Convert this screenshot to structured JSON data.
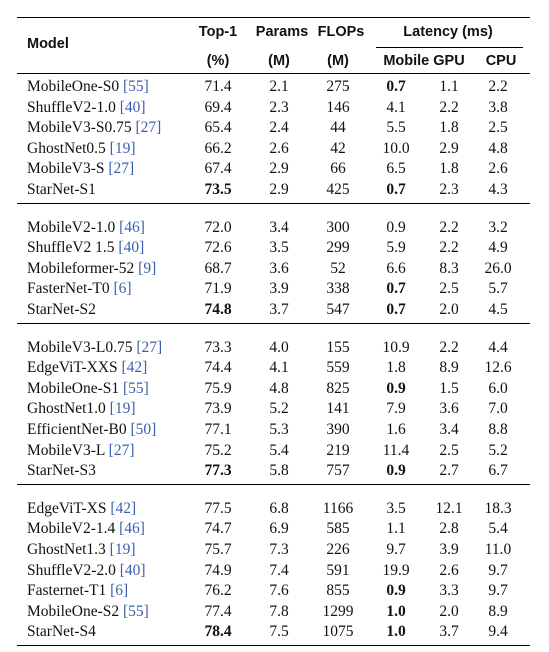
{
  "table": {
    "header": {
      "model": "Model",
      "top1": "Top-1",
      "top1_unit": "(%)",
      "params": "Params",
      "params_unit": "(M)",
      "flops": "FLOPs",
      "flops_unit": "(M)",
      "latency": "Latency (ms)",
      "mobile_gpu": "Mobile GPU",
      "cpu": "CPU"
    },
    "groups": [
      {
        "rows": [
          {
            "model": "MobileOne-S0",
            "ref": "[55]",
            "top1": "71.4",
            "params": "2.1",
            "flops": "275",
            "mobile": "0.7",
            "gpu": "1.1",
            "cpu": "2.2",
            "bold": [
              "mobile"
            ]
          },
          {
            "model": "ShuffleV2-1.0",
            "ref": "[40]",
            "top1": "69.4",
            "params": "2.3",
            "flops": "146",
            "mobile": "4.1",
            "gpu": "2.2",
            "cpu": "3.8"
          },
          {
            "model": "MobileV3-S0.75",
            "ref": "[27]",
            "top1": "65.4",
            "params": "2.4",
            "flops": "44",
            "mobile": "5.5",
            "gpu": "1.8",
            "cpu": "2.5"
          },
          {
            "model": "GhostNet0.5",
            "ref": "[19]",
            "top1": "66.2",
            "params": "2.6",
            "flops": "42",
            "mobile": "10.0",
            "gpu": "2.9",
            "cpu": "4.8"
          },
          {
            "model": "MobileV3-S",
            "ref": "[27]",
            "top1": "67.4",
            "params": "2.9",
            "flops": "66",
            "mobile": "6.5",
            "gpu": "1.8",
            "cpu": "2.6"
          },
          {
            "model": "StarNet-S1",
            "top1": "73.5",
            "params": "2.9",
            "flops": "425",
            "mobile": "0.7",
            "gpu": "2.3",
            "cpu": "4.3",
            "bold": [
              "top1",
              "mobile"
            ]
          }
        ]
      },
      {
        "rows": [
          {
            "model": "MobileV2-1.0",
            "ref": "[46]",
            "top1": "72.0",
            "params": "3.4",
            "flops": "300",
            "mobile": "0.9",
            "gpu": "2.2",
            "cpu": "3.2"
          },
          {
            "model": "ShuffleV2 1.5",
            "ref": "[40]",
            "top1": "72.6",
            "params": "3.5",
            "flops": "299",
            "mobile": "5.9",
            "gpu": "2.2",
            "cpu": "4.9"
          },
          {
            "model": "Mobileformer-52",
            "ref": "[9]",
            "top1": "68.7",
            "params": "3.6",
            "flops": "52",
            "mobile": "6.6",
            "gpu": "8.3",
            "cpu": "26.0"
          },
          {
            "model": "FasterNet-T0",
            "ref": "[6]",
            "top1": "71.9",
            "params": "3.9",
            "flops": "338",
            "mobile": "0.7",
            "gpu": "2.5",
            "cpu": "5.7",
            "bold": [
              "mobile"
            ]
          },
          {
            "model": "StarNet-S2",
            "top1": "74.8",
            "params": "3.7",
            "flops": "547",
            "mobile": "0.7",
            "gpu": "2.0",
            "cpu": "4.5",
            "bold": [
              "top1",
              "mobile"
            ]
          }
        ]
      },
      {
        "rows": [
          {
            "model": "MobileV3-L0.75",
            "ref": "[27]",
            "top1": "73.3",
            "params": "4.0",
            "flops": "155",
            "mobile": "10.9",
            "gpu": "2.2",
            "cpu": "4.4"
          },
          {
            "model": "EdgeViT-XXS",
            "ref": "[42]",
            "top1": "74.4",
            "params": "4.1",
            "flops": "559",
            "mobile": "1.8",
            "gpu": "8.9",
            "cpu": "12.6"
          },
          {
            "model": "MobileOne-S1",
            "ref": "[55]",
            "top1": "75.9",
            "params": "4.8",
            "flops": "825",
            "mobile": "0.9",
            "gpu": "1.5",
            "cpu": "6.0",
            "bold": [
              "mobile"
            ]
          },
          {
            "model": "GhostNet1.0",
            "ref": "[19]",
            "top1": "73.9",
            "params": "5.2",
            "flops": "141",
            "mobile": "7.9",
            "gpu": "3.6",
            "cpu": "7.0"
          },
          {
            "model": "EfficientNet-B0",
            "ref": "[50]",
            "top1": "77.1",
            "params": "5.3",
            "flops": "390",
            "mobile": "1.6",
            "gpu": "3.4",
            "cpu": "8.8"
          },
          {
            "model": "MobileV3-L",
            "ref": "[27]",
            "top1": "75.2",
            "params": "5.4",
            "flops": "219",
            "mobile": "11.4",
            "gpu": "2.5",
            "cpu": "5.2"
          },
          {
            "model": "StarNet-S3",
            "top1": "77.3",
            "params": "5.8",
            "flops": "757",
            "mobile": "0.9",
            "gpu": "2.7",
            "cpu": "6.7",
            "bold": [
              "top1",
              "mobile"
            ]
          }
        ]
      },
      {
        "rows": [
          {
            "model": "EdgeViT-XS",
            "ref": "[42]",
            "top1": "77.5",
            "params": "6.8",
            "flops": "1166",
            "mobile": "3.5",
            "gpu": "12.1",
            "cpu": "18.3"
          },
          {
            "model": "MobileV2-1.4",
            "ref": "[46]",
            "top1": "74.7",
            "params": "6.9",
            "flops": "585",
            "mobile": "1.1",
            "gpu": "2.8",
            "cpu": "5.4"
          },
          {
            "model": "GhostNet1.3",
            "ref": "[19]",
            "top1": "75.7",
            "params": "7.3",
            "flops": "226",
            "mobile": "9.7",
            "gpu": "3.9",
            "cpu": "11.0"
          },
          {
            "model": "ShuffleV2-2.0",
            "ref": "[40]",
            "top1": "74.9",
            "params": "7.4",
            "flops": "591",
            "mobile": "19.9",
            "gpu": "2.6",
            "cpu": "9.7"
          },
          {
            "model": "Fasternet-T1",
            "ref": "[6]",
            "top1": "76.2",
            "params": "7.6",
            "flops": "855",
            "mobile": "0.9",
            "gpu": "3.3",
            "cpu": "9.7",
            "bold": [
              "mobile"
            ]
          },
          {
            "model": "MobileOne-S2",
            "ref": "[55]",
            "top1": "77.4",
            "params": "7.8",
            "flops": "1299",
            "mobile": "1.0",
            "gpu": "2.0",
            "cpu": "8.9",
            "bold": [
              "mobile"
            ]
          },
          {
            "model": "StarNet-S4",
            "top1": "78.4",
            "params": "7.5",
            "flops": "1075",
            "mobile": "1.0",
            "gpu": "3.7",
            "cpu": "9.4",
            "bold": [
              "top1",
              "mobile"
            ]
          }
        ]
      }
    ]
  }
}
